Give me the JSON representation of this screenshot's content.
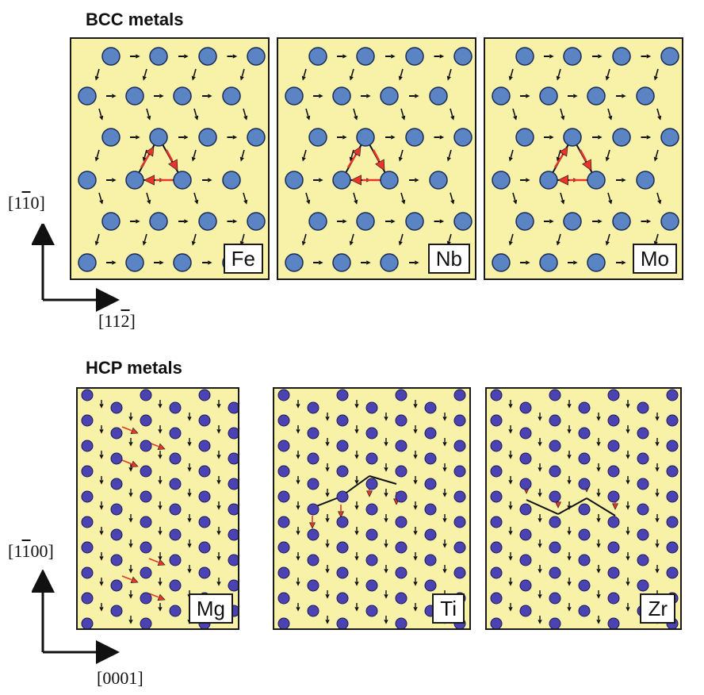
{
  "bcc": {
    "title": "BCC metals",
    "panels": [
      {
        "label": "Fe"
      },
      {
        "label": "Nb"
      },
      {
        "label": "Mo"
      }
    ],
    "axis_vertical": "[1ī0]",
    "axis_horizontal": "[11₂]"
  },
  "hcp": {
    "title": "HCP metals",
    "panels": [
      {
        "label": "Mg"
      },
      {
        "label": "Ti"
      },
      {
        "label": "Zr"
      }
    ],
    "axis_vertical": "[1ī00]",
    "axis_horizontal": "[0001]"
  },
  "colors": {
    "panel_bg": "#f8f1a8",
    "bcc_atom": "#5b84c4",
    "hcp_atom": "#4a43b0",
    "arrow_black": "#111111",
    "arrow_red": "#e8342a"
  }
}
